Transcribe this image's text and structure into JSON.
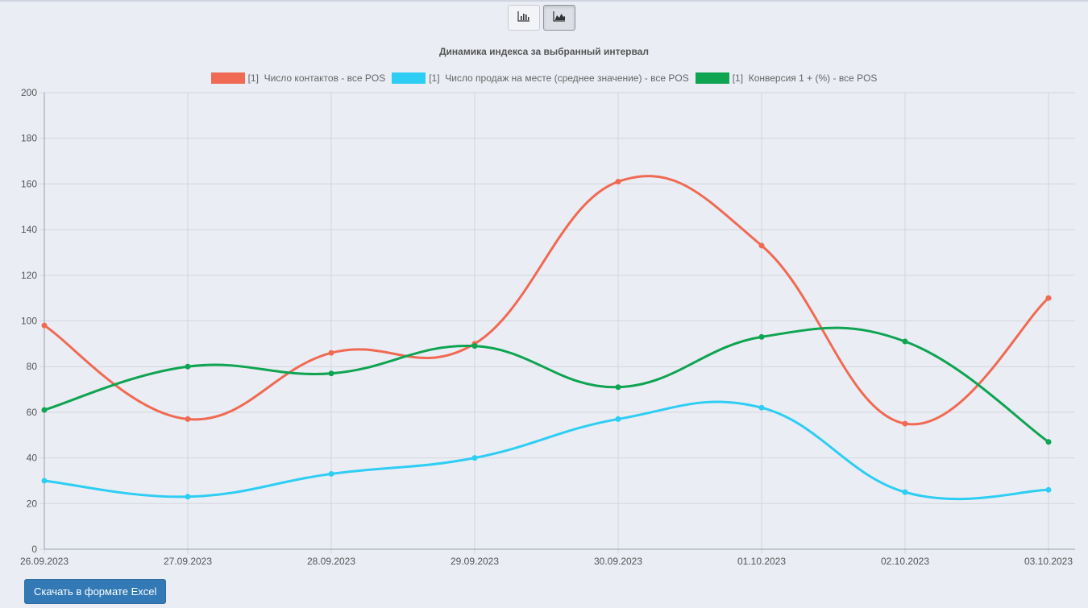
{
  "toolbar": {
    "bar_icon": "bar-chart-icon",
    "area_icon": "area-chart-icon",
    "active": "area"
  },
  "chart_data": {
    "type": "line",
    "title": "Динамика индекса за выбранный интервал",
    "x": [
      "26.09.2023",
      "27.09.2023",
      "28.09.2023",
      "29.09.2023",
      "30.09.2023",
      "01.10.2023",
      "02.10.2023",
      "03.10.2023"
    ],
    "ylim": [
      0,
      200
    ],
    "yticks": [
      0,
      20,
      40,
      60,
      80,
      100,
      120,
      140,
      160,
      180,
      200
    ],
    "grid": true,
    "legend_position": "top",
    "series": [
      {
        "name": "[1]  Число контактов - все POS",
        "color": "#f06a53",
        "values": [
          98,
          57,
          86,
          90,
          161,
          133,
          55,
          110
        ]
      },
      {
        "name": "[1]  Число продаж на месте (среднее значение) - все POS",
        "color": "#2ecdf4",
        "values": [
          30,
          23,
          33,
          40,
          57,
          62,
          25,
          26
        ]
      },
      {
        "name": "[1]  Конверсия 1 + (%) - все POS",
        "color": "#0ea451",
        "values": [
          61,
          80,
          77,
          89,
          71,
          93,
          91,
          47
        ]
      }
    ]
  },
  "actions": {
    "excel_label": "Скачать в формате Excel"
  }
}
